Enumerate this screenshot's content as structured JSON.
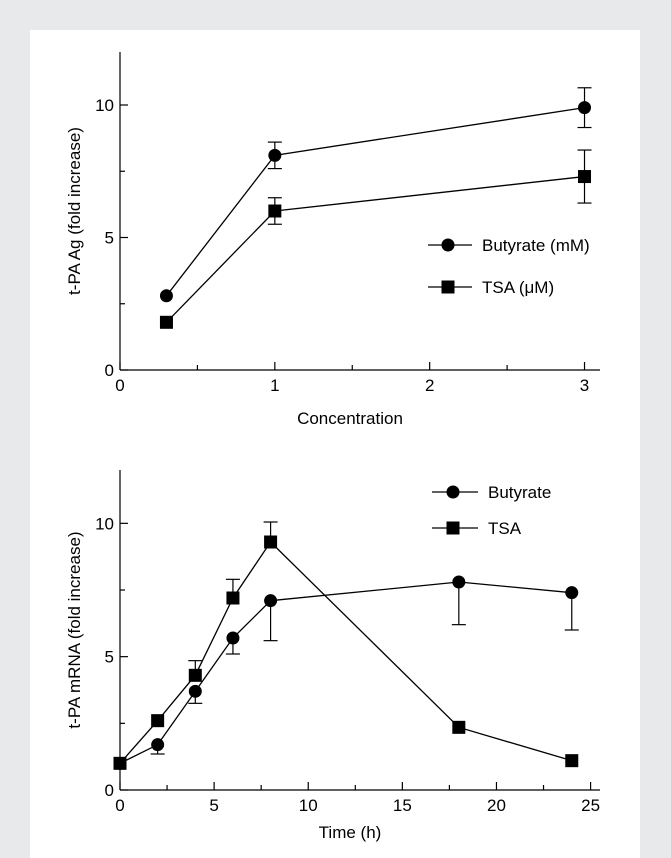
{
  "chart_data": [
    {
      "type": "line",
      "xlabel": "Concentration",
      "ylabel": "t-PA Ag (fold increase)",
      "xlim": [
        0,
        3.1
      ],
      "ylim": [
        0,
        12
      ],
      "xticks": [
        0,
        1,
        2,
        3
      ],
      "yticks": [
        0,
        5,
        10
      ],
      "grid": false,
      "legend_position": "right",
      "series": [
        {
          "name": "Butyrate (mM)",
          "marker": "circle",
          "x": [
            0.3,
            1,
            3
          ],
          "y": [
            2.8,
            8.1,
            9.9
          ],
          "error": [
            0,
            0.5,
            0.75
          ]
        },
        {
          "name": "TSA (μM)",
          "marker": "square",
          "x": [
            0.3,
            1,
            3
          ],
          "y": [
            1.8,
            6.0,
            7.3
          ],
          "error": [
            0,
            0.5,
            1.0
          ]
        }
      ]
    },
    {
      "type": "line",
      "xlabel": "Time (h)",
      "ylabel": "t-PA mRNA (fold increase)",
      "xlim": [
        0,
        25.5
      ],
      "ylim": [
        0,
        12
      ],
      "xticks": [
        0,
        5,
        10,
        15,
        20,
        25
      ],
      "yticks": [
        0,
        5,
        10
      ],
      "grid": false,
      "legend_position": "top-right",
      "series": [
        {
          "name": "Butyrate",
          "marker": "circle",
          "x": [
            0,
            2,
            4,
            6,
            8,
            18,
            24
          ],
          "y": [
            1.0,
            1.7,
            3.7,
            5.7,
            7.1,
            7.8,
            7.4
          ],
          "error": [
            0,
            0.35,
            0.45,
            0.6,
            1.5,
            1.6,
            1.4
          ],
          "error_dir": [
            0,
            -1,
            -1,
            -1,
            -1,
            -1,
            -1
          ]
        },
        {
          "name": "TSA",
          "marker": "square",
          "x": [
            0,
            2,
            4,
            6,
            8,
            18,
            24
          ],
          "y": [
            1.0,
            2.6,
            4.3,
            7.2,
            9.3,
            2.35,
            1.1
          ],
          "error": [
            0,
            0,
            0.55,
            0.7,
            0.75,
            0,
            0
          ],
          "error_dir": [
            0,
            1,
            1,
            1,
            1,
            1,
            1
          ]
        }
      ]
    }
  ]
}
